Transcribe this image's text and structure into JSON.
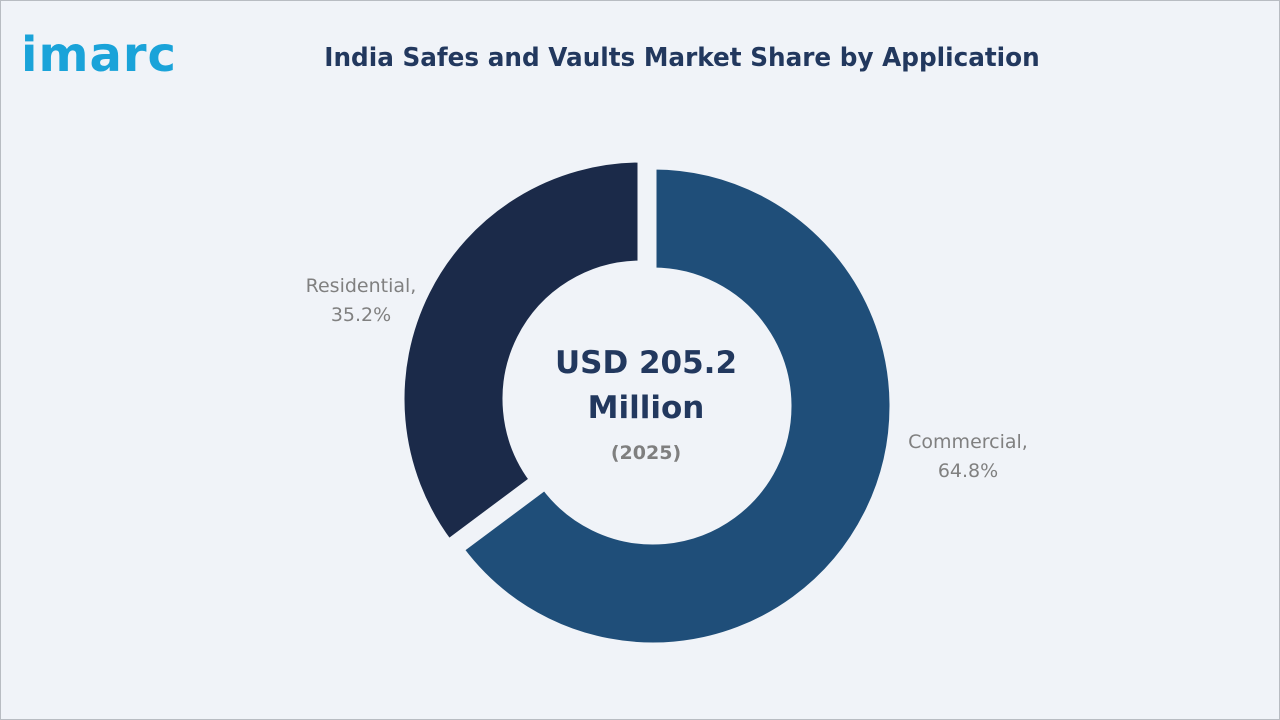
{
  "brand": {
    "logo_text": "imarc",
    "logo_color": "#1aa3d9"
  },
  "chart_data": {
    "type": "pie",
    "title": "India Safes and Vaults Market Share by Application",
    "center_value_line1": "USD 205.2",
    "center_value_line2": "Million",
    "center_year": "(2025)",
    "categories": [
      "Commercial",
      "Residential"
    ],
    "values": [
      64.8,
      35.2
    ],
    "unit": "%",
    "colors": [
      "#1f4e79",
      "#1b2a49"
    ],
    "labels": [
      {
        "name": "Commercial,",
        "value": "64.8%"
      },
      {
        "name": "Residential,",
        "value": "35.2%"
      }
    ],
    "style": "donut"
  }
}
